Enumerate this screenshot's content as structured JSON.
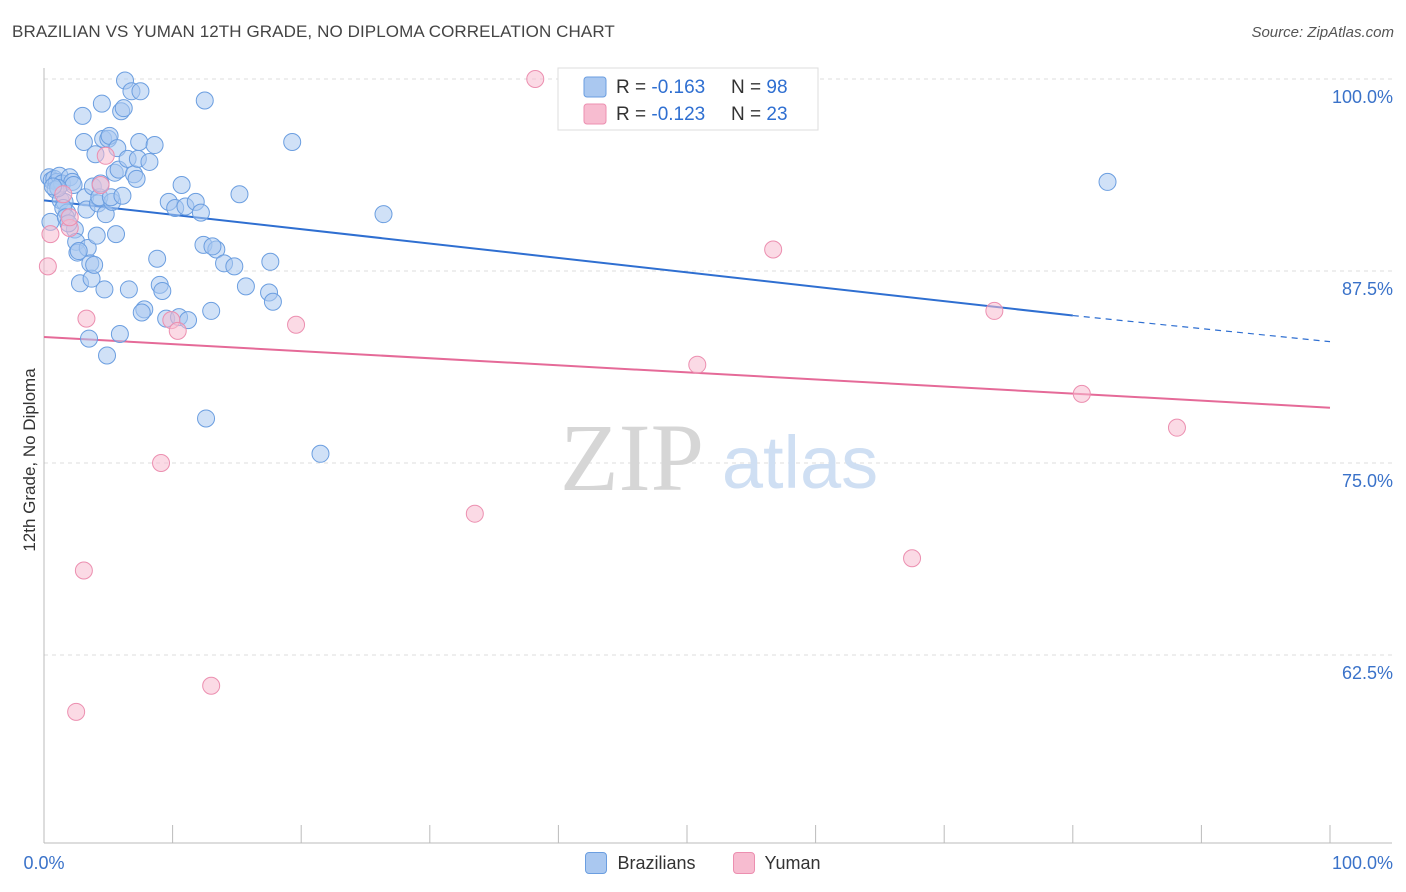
{
  "title": "BRAZILIAN VS YUMAN 12TH GRADE, NO DIPLOMA CORRELATION CHART",
  "source": "Source: ZipAtlas.com",
  "watermark": {
    "zip": "ZIP",
    "atlas": "atlas"
  },
  "colors": {
    "blue_fill": "#aac8f0",
    "blue_stroke": "#6b9ee0",
    "blue_line": "#2f6fd1",
    "pink_fill": "#f7bcd0",
    "pink_stroke": "#ec8fb0",
    "pink_line": "#e56a98",
    "axis_text": "#3a72c9",
    "grid": "#dddddd"
  },
  "legend_box": {
    "rows": [
      {
        "r_label": "R = ",
        "r_value": "-0.163",
        "n_label": "N = ",
        "n_value": "98"
      },
      {
        "r_label": "R = ",
        "r_value": "-0.123",
        "n_label": "N = ",
        "n_value": "23"
      }
    ]
  },
  "legend_bottom": {
    "series1": "Brazilians",
    "series2": "Yuman"
  },
  "chart_data": {
    "type": "scatter",
    "title": "BRAZILIAN VS YUMAN 12TH GRADE, NO DIPLOMA CORRELATION CHART",
    "xlabel": "",
    "ylabel": "12th Grade, No Diploma",
    "xlim": [
      0,
      100
    ],
    "ylim": [
      50,
      102
    ],
    "x_tick_labels": [
      "0.0%",
      "100.0%"
    ],
    "y_ticks": [
      {
        "value": 100.0,
        "label": "100.0%"
      },
      {
        "value": 87.5,
        "label": "87.5%"
      },
      {
        "value": 75.0,
        "label": "75.0%"
      },
      {
        "value": 62.5,
        "label": "62.5%"
      }
    ],
    "series": [
      {
        "name": "Brazilians",
        "color": "blue",
        "trend": {
          "x0": 0,
          "y0": 92.1,
          "x1": 80,
          "y1": 84.6,
          "dash_to_x": 100,
          "dash_to_y": 82.9
        },
        "points": [
          [
            0.4,
            93.6
          ],
          [
            0.6,
            93.4
          ],
          [
            0.8,
            93.5
          ],
          [
            1.0,
            93.3
          ],
          [
            1.2,
            93.7
          ],
          [
            1.4,
            93.2
          ],
          [
            0.5,
            90.7
          ],
          [
            0.9,
            92.8
          ],
          [
            1.3,
            92.1
          ],
          [
            1.6,
            92.0
          ],
          [
            1.8,
            91.3
          ],
          [
            1.5,
            91.6
          ],
          [
            1.7,
            91.0
          ],
          [
            2.0,
            93.6
          ],
          [
            2.2,
            93.3
          ],
          [
            2.4,
            90.2
          ],
          [
            2.5,
            89.4
          ],
          [
            2.6,
            88.7
          ],
          [
            2.8,
            86.7
          ],
          [
            3.0,
            97.6
          ],
          [
            3.1,
            95.9
          ],
          [
            3.2,
            92.3
          ],
          [
            3.3,
            91.5
          ],
          [
            3.4,
            89.0
          ],
          [
            3.5,
            83.1
          ],
          [
            3.6,
            88.0
          ],
          [
            3.7,
            87.0
          ],
          [
            3.8,
            93.0
          ],
          [
            3.9,
            87.9
          ],
          [
            4.0,
            95.1
          ],
          [
            4.1,
            89.8
          ],
          [
            4.2,
            91.9
          ],
          [
            4.3,
            92.3
          ],
          [
            4.5,
            98.4
          ],
          [
            4.6,
            96.1
          ],
          [
            4.7,
            86.3
          ],
          [
            4.8,
            91.2
          ],
          [
            4.9,
            82.0
          ],
          [
            5.0,
            96.1
          ],
          [
            5.1,
            96.3
          ],
          [
            5.3,
            92.0
          ],
          [
            5.5,
            93.9
          ],
          [
            5.6,
            89.9
          ],
          [
            5.7,
            95.5
          ],
          [
            5.8,
            94.1
          ],
          [
            5.9,
            83.4
          ],
          [
            6.0,
            97.9
          ],
          [
            6.2,
            98.1
          ],
          [
            6.3,
            99.9
          ],
          [
            6.5,
            94.8
          ],
          [
            6.6,
            86.3
          ],
          [
            6.8,
            99.2
          ],
          [
            7.0,
            93.8
          ],
          [
            7.2,
            93.5
          ],
          [
            7.3,
            94.8
          ],
          [
            7.4,
            95.9
          ],
          [
            7.5,
            99.2
          ],
          [
            7.8,
            85.0
          ],
          [
            8.2,
            94.6
          ],
          [
            8.6,
            95.7
          ],
          [
            8.8,
            88.3
          ],
          [
            9.0,
            86.6
          ],
          [
            9.2,
            86.2
          ],
          [
            9.5,
            84.4
          ],
          [
            9.7,
            92.0
          ],
          [
            10.2,
            91.6
          ],
          [
            10.5,
            84.5
          ],
          [
            10.7,
            93.1
          ],
          [
            11.0,
            91.7
          ],
          [
            11.8,
            92.0
          ],
          [
            12.2,
            91.3
          ],
          [
            12.4,
            89.2
          ],
          [
            12.5,
            98.6
          ],
          [
            12.6,
            77.9
          ],
          [
            13.0,
            84.9
          ],
          [
            13.4,
            88.9
          ],
          [
            14.0,
            88.0
          ],
          [
            15.2,
            92.5
          ],
          [
            15.7,
            86.5
          ],
          [
            17.5,
            86.1
          ],
          [
            17.6,
            88.1
          ],
          [
            17.8,
            85.5
          ],
          [
            19.3,
            95.9
          ],
          [
            21.5,
            75.6
          ],
          [
            26.4,
            91.2
          ],
          [
            82.7,
            93.3
          ],
          [
            5.2,
            92.3
          ],
          [
            2.3,
            93.1
          ],
          [
            1.1,
            92.9
          ],
          [
            0.7,
            93.0
          ],
          [
            1.9,
            90.6
          ],
          [
            2.7,
            88.8
          ],
          [
            4.4,
            93.2
          ],
          [
            6.1,
            92.4
          ],
          [
            7.6,
            84.8
          ],
          [
            11.2,
            84.3
          ],
          [
            13.1,
            89.1
          ],
          [
            14.8,
            87.8
          ]
        ]
      },
      {
        "name": "Yuman",
        "color": "pink",
        "trend": {
          "x0": 0,
          "y0": 83.2,
          "x1": 100,
          "y1": 78.6
        },
        "points": [
          [
            0.3,
            87.8
          ],
          [
            0.5,
            89.9
          ],
          [
            1.5,
            92.5
          ],
          [
            2.0,
            90.3
          ],
          [
            2.0,
            91.0
          ],
          [
            3.1,
            68.0
          ],
          [
            3.3,
            84.4
          ],
          [
            2.5,
            58.8
          ],
          [
            4.4,
            93.1
          ],
          [
            4.8,
            95.0
          ],
          [
            9.1,
            75.0
          ],
          [
            9.9,
            84.3
          ],
          [
            10.4,
            83.6
          ],
          [
            13.0,
            60.5
          ],
          [
            19.6,
            84.0
          ],
          [
            33.5,
            71.7
          ],
          [
            38.2,
            100.0
          ],
          [
            50.8,
            81.4
          ],
          [
            56.7,
            88.9
          ],
          [
            67.5,
            68.8
          ],
          [
            73.9,
            84.9
          ],
          [
            80.7,
            79.5
          ],
          [
            88.1,
            77.3
          ]
        ]
      }
    ]
  }
}
